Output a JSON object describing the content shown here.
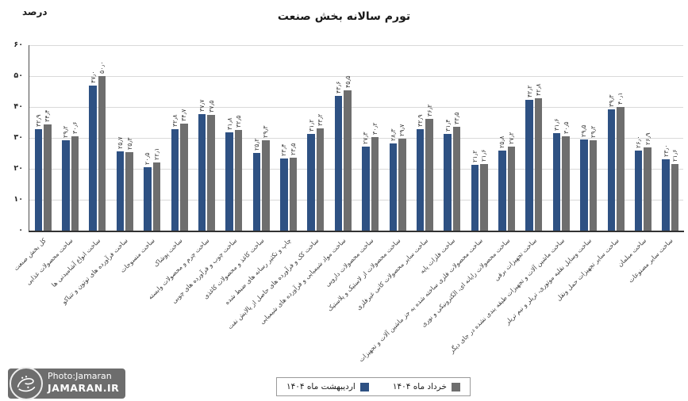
{
  "title": "تورم سالانه بخش صنعت",
  "y_axis_title": "درصد",
  "colors": {
    "series1": "#2E5183",
    "series2": "#6E6E6E",
    "gridline": "#d9d9d9",
    "axis": "#333333",
    "watermark_bg": "#6d6d6d"
  },
  "watermark": {
    "logo": "jamaran-logo",
    "line1": "Photo:Jamaran",
    "line2": "JAMARAN.IR"
  },
  "chart_data": {
    "type": "bar",
    "title": "تورم سالانه بخش صنعت",
    "xlabel": "",
    "ylabel": "درصد",
    "ylim": [
      0,
      60
    ],
    "yticks": [
      0,
      10,
      20,
      30,
      40,
      50,
      60
    ],
    "ytick_labels": [
      "۰",
      "۱۰",
      "۲۰",
      "۳۰",
      "۴۰",
      "۵۰",
      "۶۰"
    ],
    "grid": true,
    "show_value_labels": true,
    "value_label_style": "persian-digits-one-decimal-rotated-90",
    "legend_position": "bottom",
    "categories": [
      "کل بخش صنعت",
      "ساخت محصولات غذایی",
      "ساخت انواع آشامیدنی ها",
      "ساخت فرآورده های توتون و تنباکو",
      "ساخت منسوجات",
      "ساخت پوشاک",
      "ساخت چرم و محصولات وابسته",
      "ساخت چوب و فرآورده های چوبی",
      "ساخت کاغذ و محصولات کاغذی",
      "چاپ و تکثیر رسانه های ضبط شده",
      "ساخت کک و فرآورده های حاصل از پالایش نفت",
      "ساخت مواد شیمیایی و فرآورده های شیمیایی",
      "ساخت محصولات دارویی",
      "ساخت محصولات از لاستیک و پلاستیک",
      "ساخت سایر محصولات کانی غیرفلزی",
      "ساخت فلزات پایه",
      "ساخت محصولات فلزی ساخته شده به جز ماشین آلات و تجهیزات",
      "ساخت محصولات رایانه ای، الکترونیکی و نوری",
      "ساخت تجهیزات برقی",
      "ساخت ماشین آلات و تجهیزات طبقه بندی نشده در جای دیگر",
      "ساخت وسایل نقلیه موتوری، تریلر و نیم تریلر",
      "ساخت سایر تجهیزات حمل ونقل",
      "ساخت مبلمان",
      "ساخت سایر مصنوعات"
    ],
    "series": [
      {
        "name": "اردیبهشت ماه ۱۴۰۴",
        "color": "#2E5183",
        "values": [
          32.9,
          29.2,
          47.0,
          25.7,
          20.5,
          32.8,
          37.7,
          31.8,
          25.2,
          23.4,
          31.2,
          43.6,
          27.3,
          28.3,
          32.9,
          31.4,
          21.2,
          25.8,
          42.2,
          31.6,
          29.5,
          39.3,
          26.0,
          23.0
        ]
      },
      {
        "name": "خرداد ماه ۱۴۰۴",
        "color": "#6E6E6E",
        "values": [
          34.4,
          30.6,
          50.0,
          25.3,
          22.1,
          34.7,
          37.5,
          32.5,
          29.3,
          23.5,
          33.2,
          45.5,
          30.2,
          29.7,
          36.2,
          33.5,
          21.6,
          27.2,
          42.8,
          30.5,
          29.2,
          40.1,
          26.9,
          21.6
        ]
      }
    ]
  }
}
